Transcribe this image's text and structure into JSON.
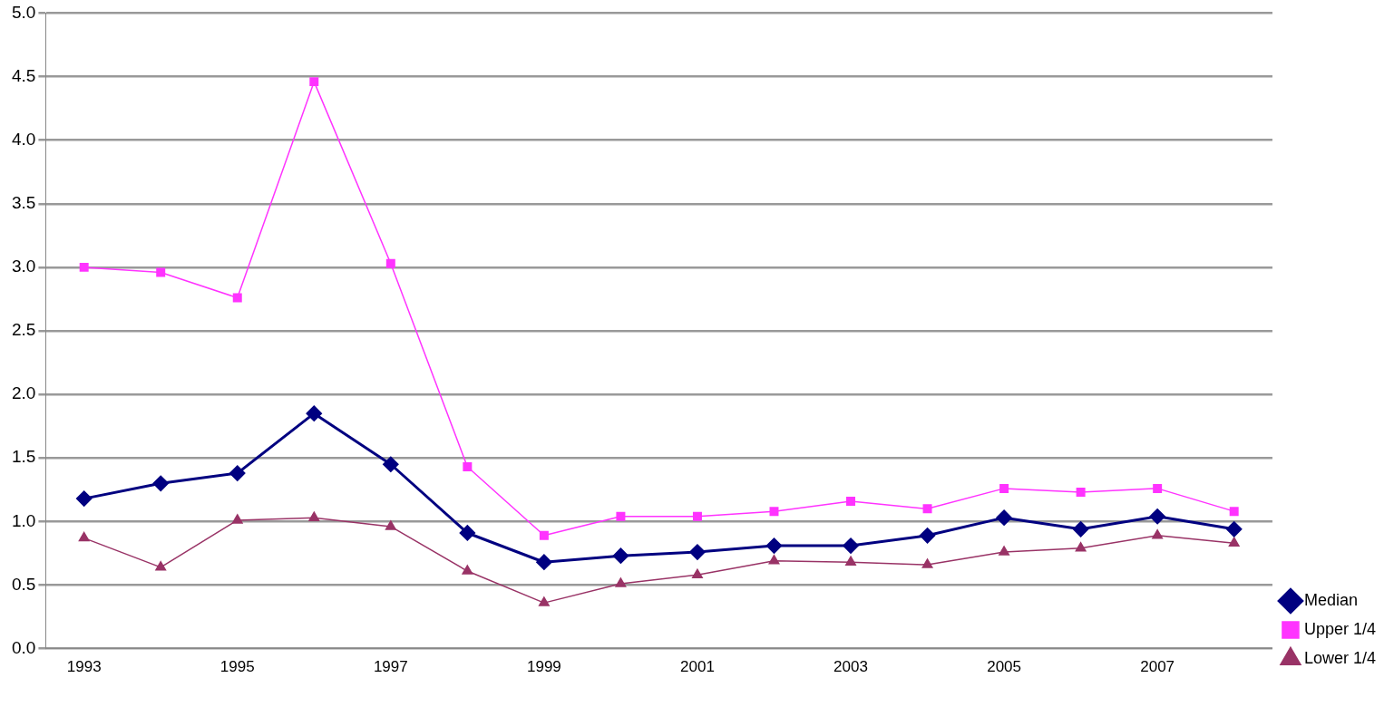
{
  "chart_data": {
    "type": "line",
    "categories": [
      "1993",
      null,
      "1995",
      null,
      "1997",
      null,
      "1999",
      null,
      "2001",
      null,
      "2003",
      null,
      "2005",
      null,
      "2007",
      null
    ],
    "series": [
      {
        "name": "Median",
        "color": "#000080",
        "marker": "diamond",
        "values": [
          1.18,
          1.3,
          1.38,
          1.85,
          1.45,
          0.91,
          0.68,
          0.73,
          0.76,
          0.81,
          0.81,
          0.89,
          1.03,
          0.94,
          1.04,
          0.94
        ]
      },
      {
        "name": "Upper 1/4",
        "color": "#ff33ff",
        "marker": "square",
        "values": [
          3.0,
          2.96,
          2.76,
          4.46,
          3.03,
          1.43,
          0.89,
          1.04,
          1.04,
          1.08,
          1.16,
          1.1,
          1.26,
          1.23,
          1.26,
          1.08
        ]
      },
      {
        "name": "Lower 1/4",
        "color": "#993366",
        "marker": "triangle",
        "values": [
          0.87,
          0.64,
          1.01,
          1.03,
          0.96,
          0.61,
          0.36,
          0.51,
          0.58,
          0.69,
          0.68,
          0.66,
          0.76,
          0.79,
          0.89,
          0.83
        ]
      }
    ],
    "ylim": [
      0,
      5
    ],
    "yticks": [
      {
        "value": 0,
        "label": "0.0"
      },
      {
        "value": 0.5,
        "label": "0.5"
      },
      {
        "value": 1,
        "label": "1.0"
      },
      {
        "value": 1.5,
        "label": "1.5"
      },
      {
        "value": 2,
        "label": "2.0"
      },
      {
        "value": 2.5,
        "label": "2.5"
      },
      {
        "value": 3,
        "label": "3.0"
      },
      {
        "value": 3.5,
        "label": "3.5"
      },
      {
        "value": 4,
        "label": "4.0"
      },
      {
        "value": 4.5,
        "label": "4.5"
      },
      {
        "value": 5,
        "label": "5.0"
      }
    ],
    "grid": "y",
    "legend": "right"
  }
}
